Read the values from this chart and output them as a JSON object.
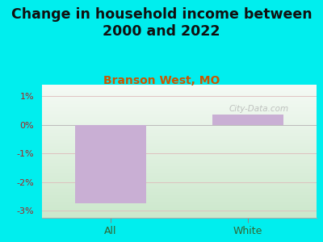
{
  "title": "Change in household income between\n2000 and 2022",
  "subtitle": "Branson West, MO",
  "categories": [
    "All",
    "White"
  ],
  "values": [
    -2.75,
    0.35
  ],
  "bar_color": "#c9afd4",
  "title_fontsize": 12.5,
  "title_fontweight": "bold",
  "subtitle_fontsize": 10,
  "subtitle_color": "#cc5500",
  "title_color": "#111111",
  "background_outer": "#00eeee",
  "background_inner": "#e8f5e2",
  "tick_label_color": "#aa2222",
  "xticklabel_color": "#336633",
  "ylim": [
    -3.25,
    1.4
  ],
  "yticks": [
    -3,
    -2,
    -1,
    0,
    1
  ],
  "ytick_labels": [
    "-3%",
    "-2%",
    "-1%",
    "0%",
    "1%"
  ],
  "watermark": "City-Data.com",
  "watermark_color": "#aaaaaa"
}
